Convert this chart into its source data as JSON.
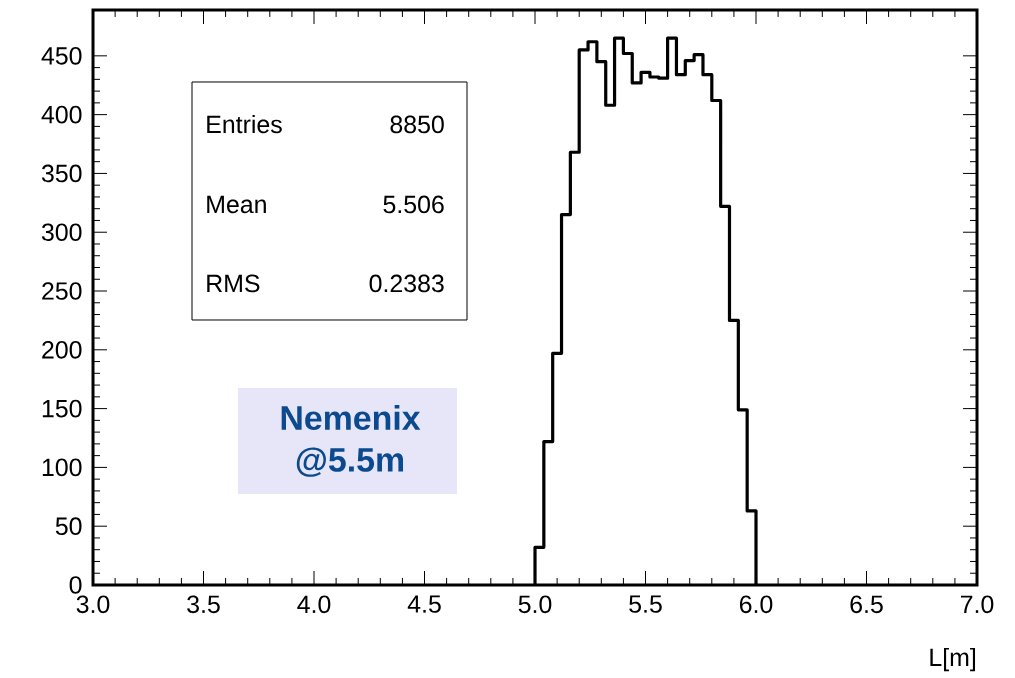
{
  "chart_data": {
    "type": "histogram",
    "xlabel": "L[m]",
    "bins": [
      5.0,
      5.04,
      5.08,
      5.12,
      5.16,
      5.2,
      5.24,
      5.28,
      5.32,
      5.36,
      5.4,
      5.44,
      5.48,
      5.52,
      5.56,
      5.6,
      5.64,
      5.68,
      5.72,
      5.76,
      5.8,
      5.84,
      5.88,
      5.92,
      5.96,
      6.0
    ],
    "values": [
      32,
      122,
      197,
      315,
      368,
      455,
      462,
      445,
      408,
      465,
      452,
      427,
      436,
      432,
      431,
      465,
      434,
      446,
      451,
      434,
      412,
      322,
      225,
      149,
      63
    ],
    "color": "#000000",
    "xlim": [
      3,
      7
    ],
    "ylim": [
      0,
      489
    ],
    "xticks": [
      {
        "value": 3,
        "label": "3.0"
      },
      3.5,
      {
        "value": 4,
        "label": "4.0"
      },
      4.5,
      {
        "value": 5,
        "label": "5.0"
      },
      5.5,
      {
        "value": 6,
        "label": "6.0"
      },
      6.5,
      {
        "value": 7,
        "label": "7.0"
      }
    ],
    "yticks": [
      0,
      50,
      100,
      150,
      200,
      250,
      300,
      350,
      400,
      450
    ],
    "grid": false,
    "annotations": [
      "Entries",
      "8850",
      "Mean",
      "5.506",
      "RMS",
      "0.2383",
      "Nemenix @5.5m"
    ]
  }
}
